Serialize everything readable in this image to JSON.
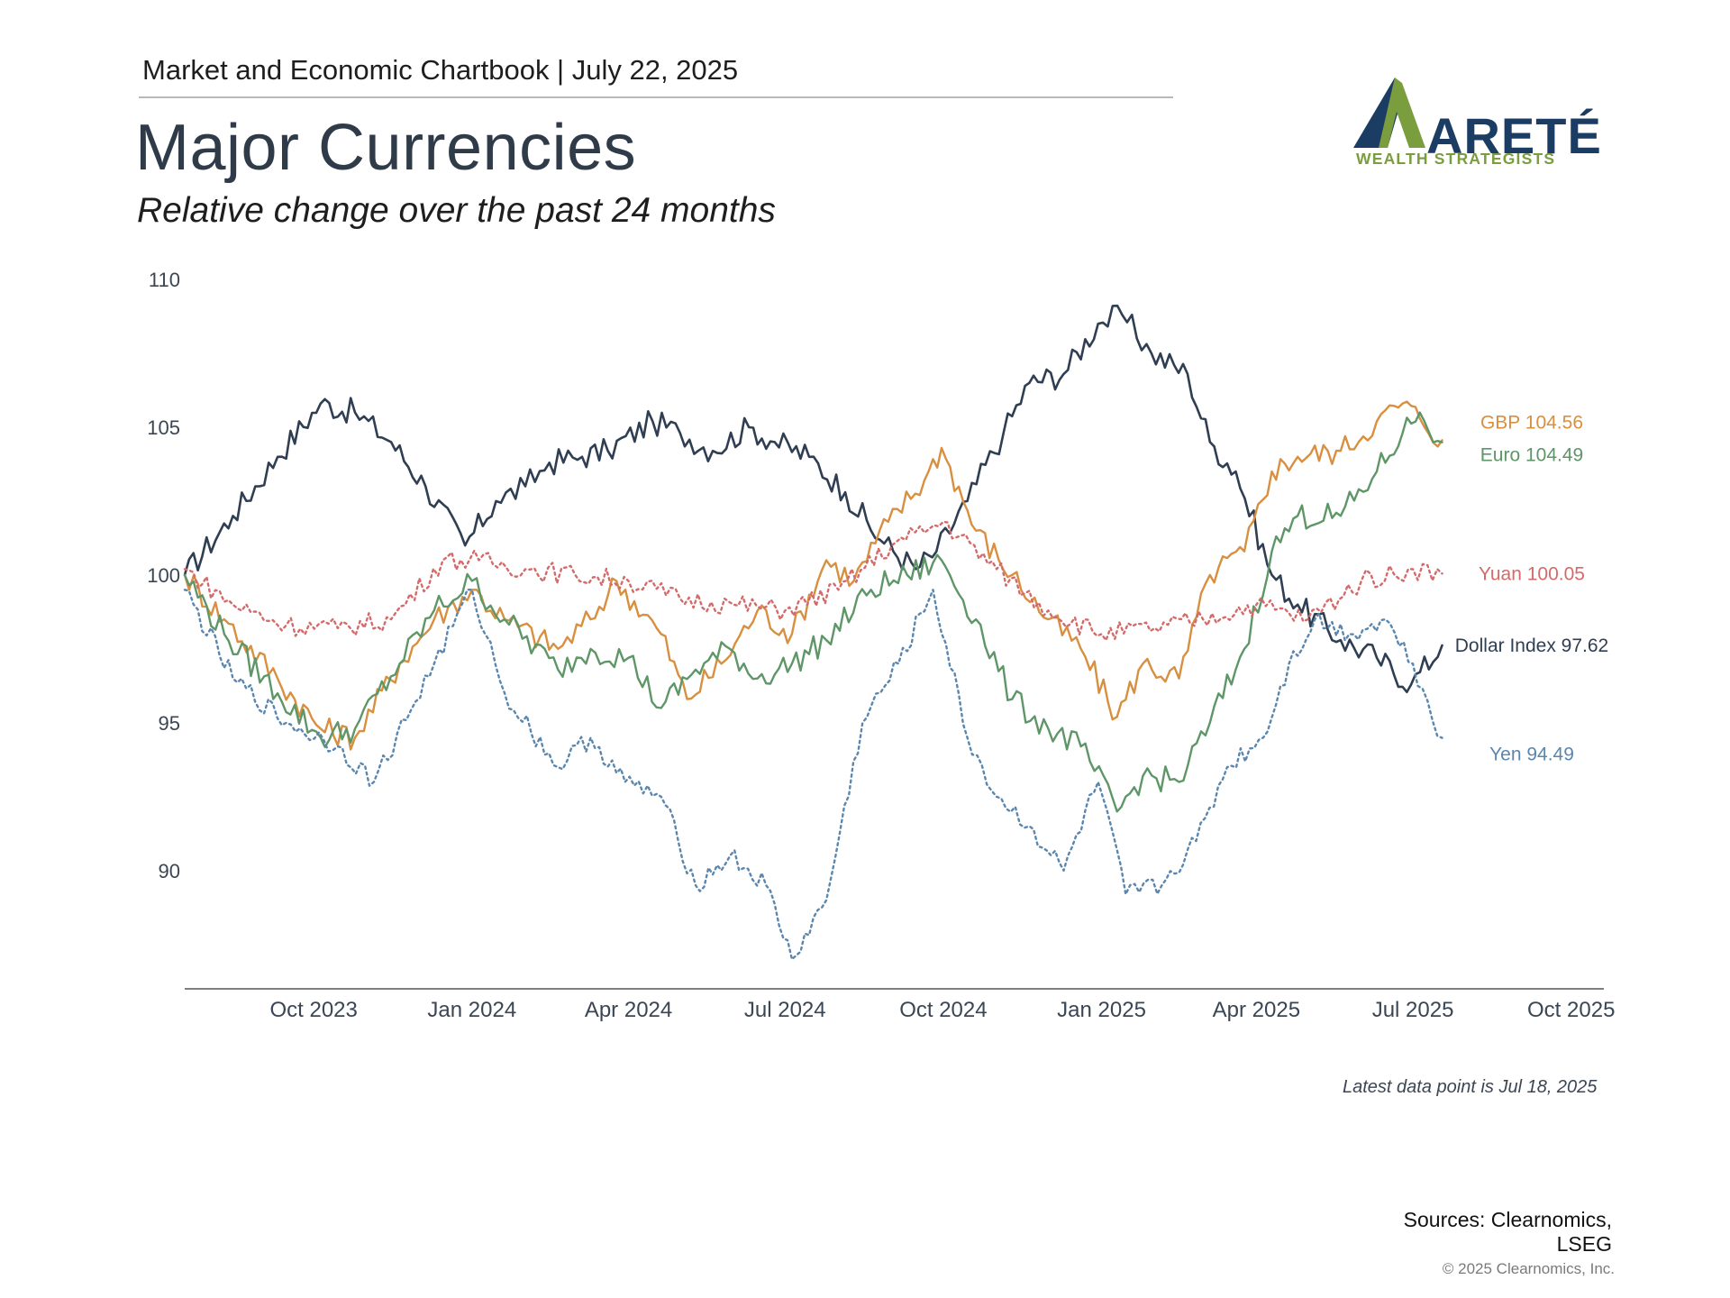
{
  "header": {
    "chartbook": "Market and Economic Chartbook | July 22, 2025",
    "title": "Major Currencies",
    "subtitle": "Relative change over the past 24 months"
  },
  "logo": {
    "name": "ARETÉ",
    "tagline": "WEALTH STRATEGISTS",
    "colors": {
      "navy": "#1c3d63",
      "green": "#7a9d3e"
    }
  },
  "footer": {
    "latest": "Latest data point is Jul 18, 2025",
    "sources_line1": "Sources: Clearnomics,",
    "sources_line2": "LSEG",
    "copyright": "© 2025 Clearnomics, Inc."
  },
  "chart_data": {
    "type": "line",
    "title": "Major Currencies",
    "subtitle": "Relative change over the past 24 months",
    "ylim": [
      86,
      110
    ],
    "y_ticks": [
      110,
      105,
      100,
      95,
      90
    ],
    "x_ticks": [
      "Oct 2023",
      "Jan 2024",
      "Apr 2024",
      "Jul 2024",
      "Oct 2024",
      "Jan 2025",
      "Apr 2025",
      "Jul 2025",
      "Oct 2025"
    ],
    "x_tick_dates": [
      "2023-10-01",
      "2024-01-01",
      "2024-04-01",
      "2024-07-01",
      "2024-10-01",
      "2025-01-01",
      "2025-04-01",
      "2025-07-01",
      "2025-10-01"
    ],
    "xlim": [
      "2023-07-18",
      "2025-10-20"
    ],
    "grid": false,
    "legend": "end-labels-right",
    "series": [
      {
        "name": "Dollar Index",
        "label": "Dollar Index 97.62",
        "color": "#2f3e52",
        "style": "solid",
        "x": [
          "2023-07-18",
          "2023-08-15",
          "2023-09-10",
          "2023-10-05",
          "2023-10-25",
          "2023-11-15",
          "2023-12-05",
          "2023-12-28",
          "2024-01-15",
          "2024-02-01",
          "2024-02-15",
          "2024-03-05",
          "2024-03-20",
          "2024-04-15",
          "2024-05-01",
          "2024-05-20",
          "2024-06-10",
          "2024-06-25",
          "2024-07-15",
          "2024-08-05",
          "2024-08-25",
          "2024-09-15",
          "2024-09-27",
          "2024-10-15",
          "2024-11-05",
          "2024-11-20",
          "2024-12-10",
          "2024-12-30",
          "2025-01-13",
          "2025-01-30",
          "2025-02-20",
          "2025-03-05",
          "2025-03-20",
          "2025-04-10",
          "2025-04-25",
          "2025-05-20",
          "2025-06-10",
          "2025-06-30",
          "2025-07-18"
        ],
        "y": [
          100.0,
          102.0,
          104.0,
          105.8,
          105.5,
          104.5,
          103.0,
          101.0,
          102.5,
          103.0,
          103.8,
          104.0,
          104.2,
          105.2,
          104.8,
          104.2,
          105.0,
          104.5,
          104.0,
          102.8,
          101.2,
          100.2,
          100.8,
          102.5,
          104.8,
          106.5,
          106.8,
          108.5,
          108.8,
          107.5,
          106.8,
          104.5,
          103.5,
          100.0,
          99.0,
          97.8,
          97.2,
          96.3,
          97.62
        ]
      },
      {
        "name": "GBP",
        "label": "GBP 104.56",
        "color": "#d88f3f",
        "style": "solid",
        "x": [
          "2023-07-18",
          "2023-08-10",
          "2023-09-10",
          "2023-10-05",
          "2023-10-25",
          "2023-11-20",
          "2023-12-10",
          "2024-01-01",
          "2024-01-20",
          "2024-02-20",
          "2024-03-10",
          "2024-03-25",
          "2024-04-20",
          "2024-05-05",
          "2024-05-25",
          "2024-06-15",
          "2024-07-05",
          "2024-07-25",
          "2024-08-10",
          "2024-08-30",
          "2024-09-20",
          "2024-09-30",
          "2024-10-20",
          "2024-11-10",
          "2024-12-01",
          "2024-12-20",
          "2025-01-10",
          "2025-01-25",
          "2025-02-15",
          "2025-03-05",
          "2025-03-25",
          "2025-04-10",
          "2025-04-25",
          "2025-05-20",
          "2025-06-10",
          "2025-06-25",
          "2025-07-05",
          "2025-07-18"
        ],
        "y": [
          100.0,
          98.5,
          96.5,
          94.8,
          94.5,
          97.0,
          98.5,
          99.5,
          98.5,
          97.5,
          98.5,
          99.8,
          98.0,
          95.8,
          97.0,
          98.8,
          98.0,
          100.5,
          99.8,
          101.8,
          103.2,
          104.3,
          101.5,
          100.0,
          98.5,
          97.5,
          95.2,
          97.0,
          96.5,
          100.0,
          100.8,
          103.5,
          104.0,
          104.2,
          105.2,
          105.8,
          105.3,
          104.56
        ]
      },
      {
        "name": "Euro",
        "label": "Euro 104.49",
        "color": "#5e9668",
        "style": "solid",
        "x": [
          "2023-07-18",
          "2023-08-10",
          "2023-09-10",
          "2023-10-05",
          "2023-10-25",
          "2023-11-20",
          "2023-12-10",
          "2024-01-01",
          "2024-01-20",
          "2024-02-20",
          "2024-03-10",
          "2024-04-01",
          "2024-04-20",
          "2024-05-10",
          "2024-05-30",
          "2024-06-15",
          "2024-07-05",
          "2024-07-25",
          "2024-08-20",
          "2024-09-10",
          "2024-09-30",
          "2024-10-20",
          "2024-11-10",
          "2024-12-01",
          "2024-12-20",
          "2025-01-10",
          "2025-01-25",
          "2025-02-15",
          "2025-03-05",
          "2025-03-25",
          "2025-04-10",
          "2025-04-25",
          "2025-05-20",
          "2025-06-10",
          "2025-06-25",
          "2025-07-05",
          "2025-07-18"
        ],
        "y": [
          100.0,
          98.0,
          96.0,
          94.5,
          94.8,
          97.0,
          98.8,
          99.8,
          98.5,
          96.8,
          97.5,
          97.2,
          95.5,
          96.8,
          97.5,
          96.5,
          97.0,
          97.8,
          99.5,
          100.0,
          100.5,
          98.5,
          95.8,
          94.8,
          94.2,
          92.0,
          93.2,
          93.0,
          95.0,
          97.5,
          100.8,
          102.0,
          102.0,
          103.5,
          104.8,
          105.5,
          104.49
        ]
      },
      {
        "name": "Yuan",
        "label": "Yuan 100.05",
        "color": "#d46a6a",
        "style": "dotted",
        "x": [
          "2023-07-18",
          "2023-08-15",
          "2023-09-15",
          "2023-10-15",
          "2023-11-15",
          "2023-12-15",
          "2024-01-05",
          "2024-02-01",
          "2024-03-01",
          "2024-04-01",
          "2024-05-01",
          "2024-06-01",
          "2024-07-01",
          "2024-08-01",
          "2024-09-01",
          "2024-10-01",
          "2024-11-01",
          "2024-12-01",
          "2025-01-01",
          "2025-02-01",
          "2025-03-01",
          "2025-04-01",
          "2025-05-01",
          "2025-06-01",
          "2025-07-01",
          "2025-07-18"
        ],
        "y": [
          100.2,
          99.0,
          98.3,
          98.2,
          98.5,
          100.5,
          100.5,
          100.2,
          100.0,
          99.8,
          99.2,
          99.0,
          98.8,
          99.5,
          101.0,
          101.8,
          100.2,
          98.8,
          98.0,
          98.2,
          98.5,
          99.0,
          98.5,
          99.8,
          100.2,
          100.05
        ]
      },
      {
        "name": "Yen",
        "label": "Yen 94.49",
        "color": "#5b86ad",
        "style": "dotted",
        "x": [
          "2023-07-18",
          "2023-08-15",
          "2023-09-15",
          "2023-10-15",
          "2023-11-05",
          "2023-12-10",
          "2024-01-01",
          "2024-01-20",
          "2024-02-20",
          "2024-03-10",
          "2024-03-30",
          "2024-04-20",
          "2024-05-10",
          "2024-05-30",
          "2024-06-20",
          "2024-07-05",
          "2024-07-25",
          "2024-08-15",
          "2024-09-05",
          "2024-09-25",
          "2024-10-15",
          "2024-11-01",
          "2024-11-20",
          "2024-12-10",
          "2024-12-30",
          "2025-01-15",
          "2025-02-05",
          "2025-02-25",
          "2025-03-15",
          "2025-04-05",
          "2025-04-20",
          "2025-05-05",
          "2025-05-25",
          "2025-06-15",
          "2025-07-01",
          "2025-07-18"
        ],
        "y": [
          99.5,
          96.5,
          95.0,
          94.2,
          93.0,
          97.0,
          99.5,
          96.0,
          93.5,
          94.5,
          93.0,
          92.5,
          89.5,
          90.5,
          89.5,
          87.0,
          89.0,
          95.0,
          97.0,
          99.5,
          94.5,
          92.5,
          91.5,
          90.0,
          93.0,
          89.2,
          89.5,
          91.0,
          93.5,
          94.5,
          97.0,
          98.5,
          98.0,
          98.5,
          97.0,
          94.49
        ]
      }
    ]
  }
}
